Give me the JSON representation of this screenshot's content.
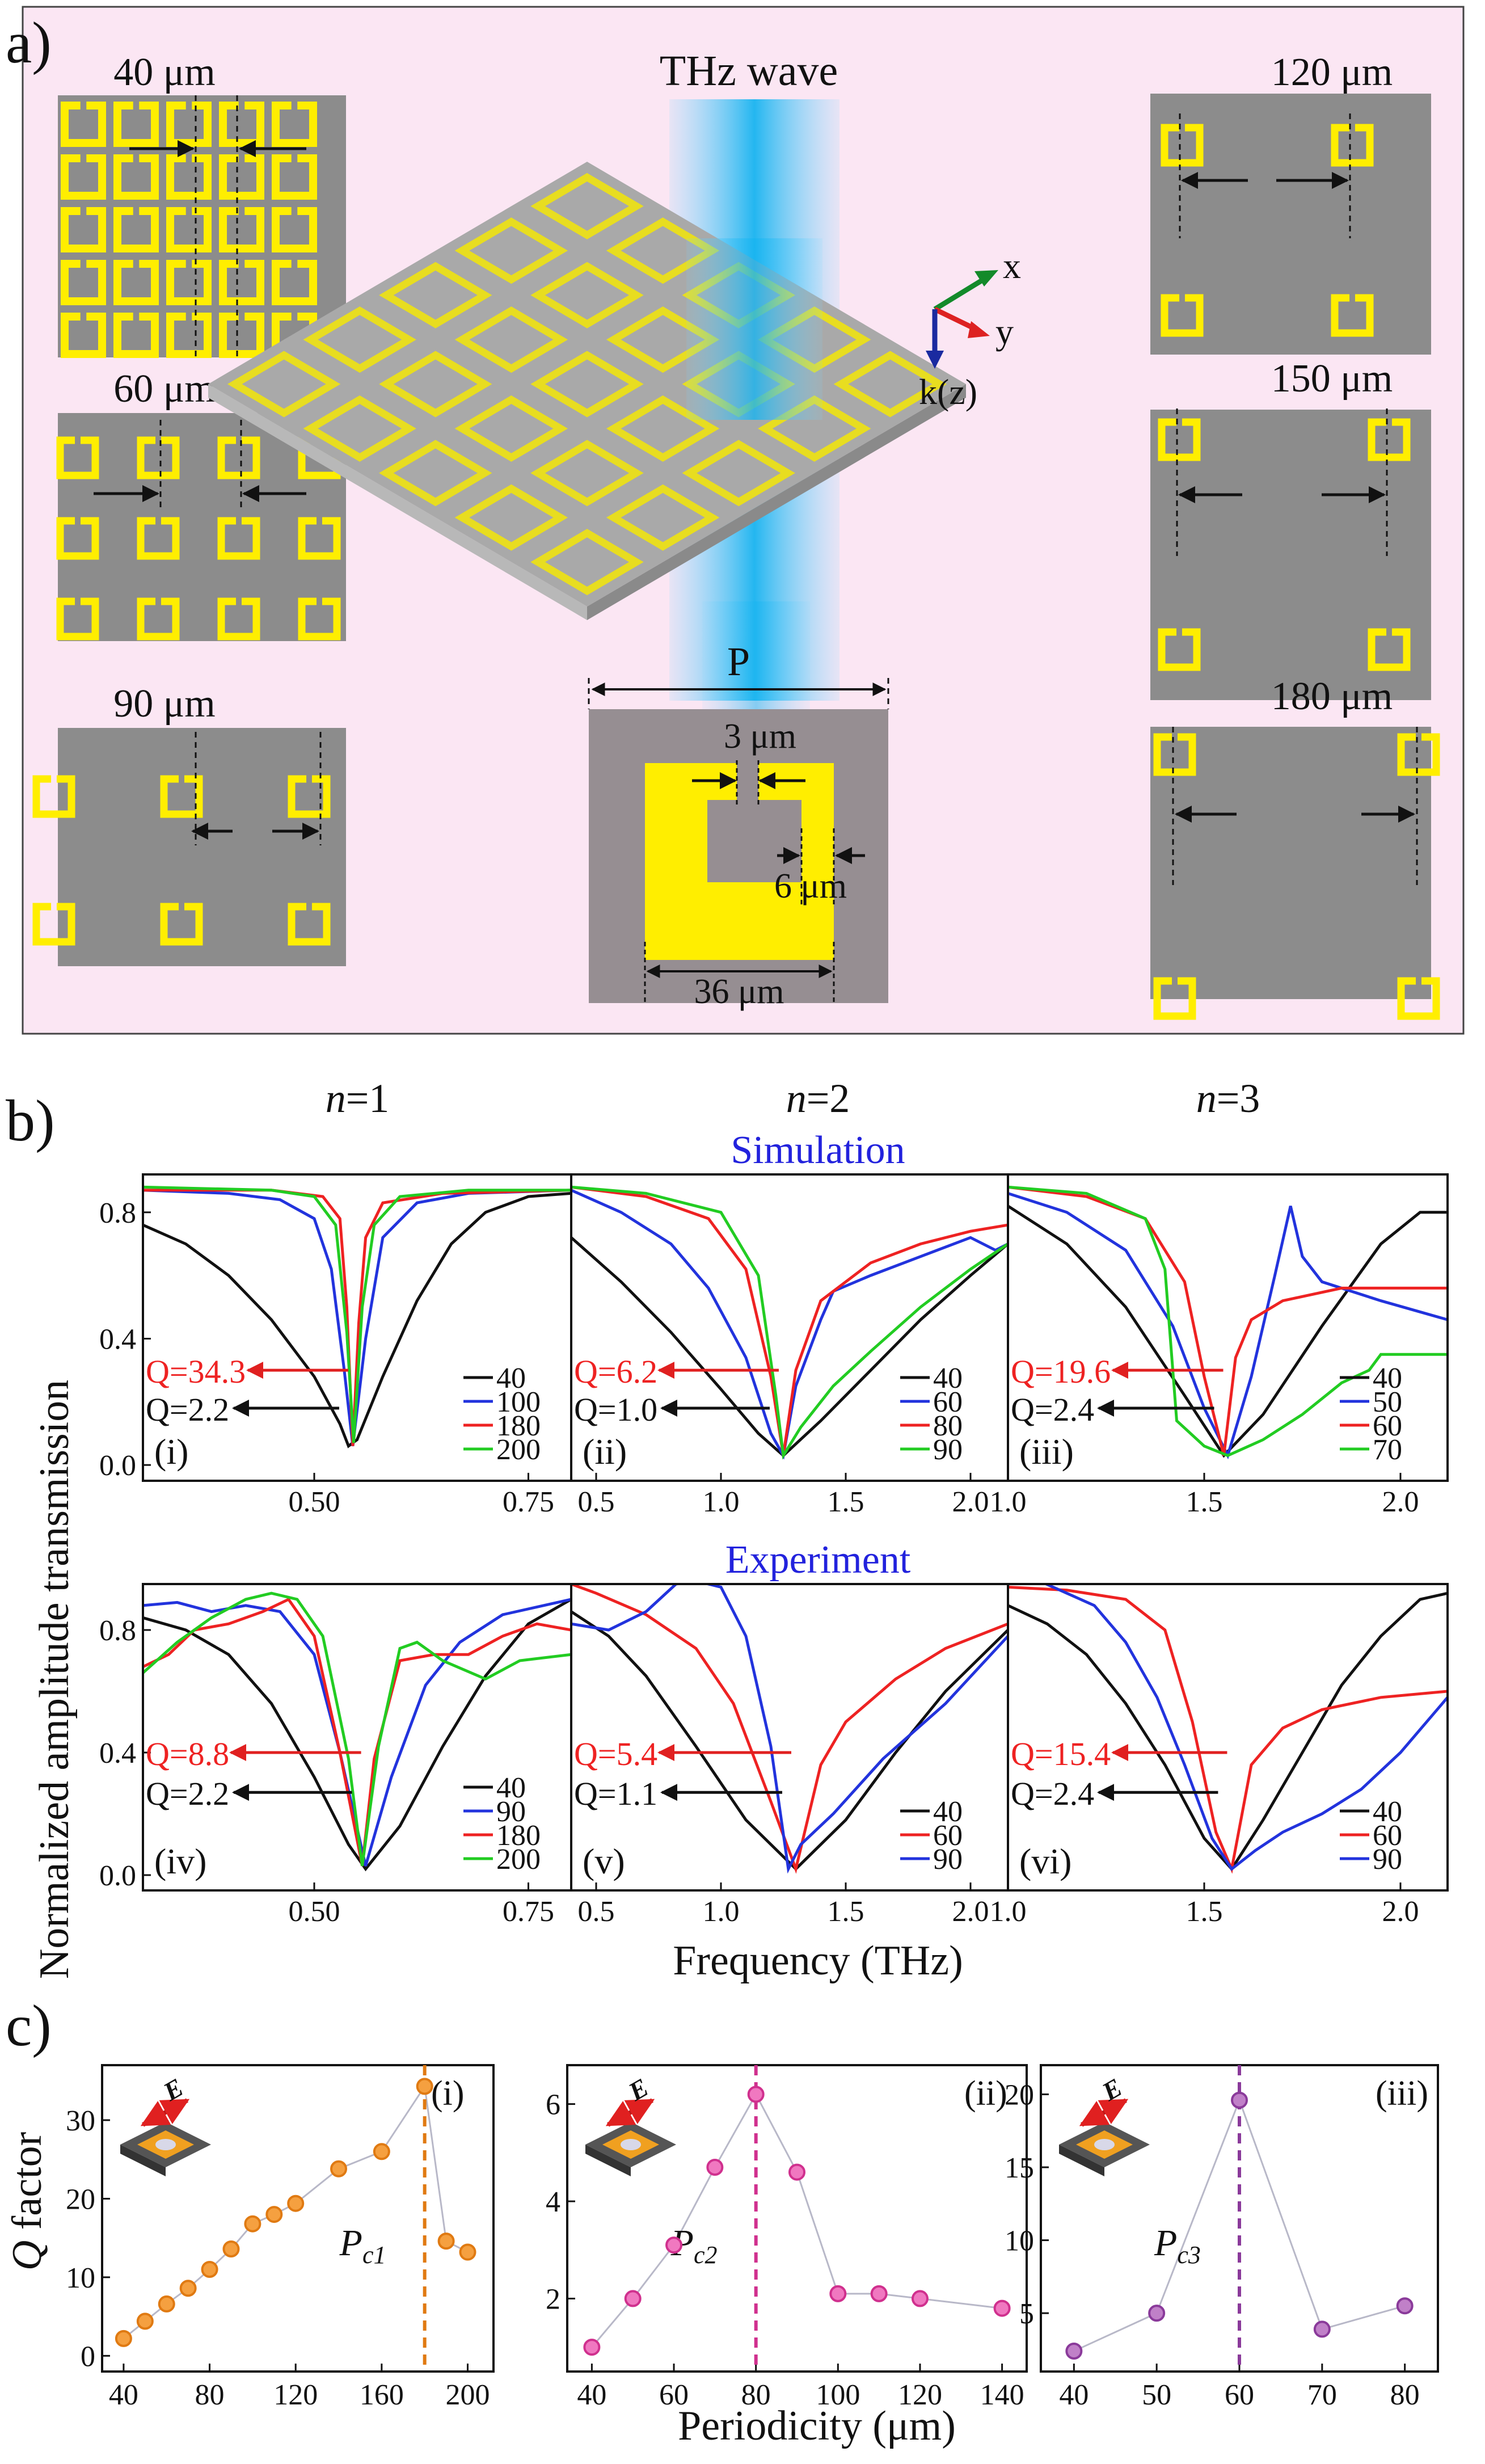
{
  "panel_a": {
    "label": "a)",
    "center_title": "THz wave",
    "axes": {
      "x": "x",
      "y": "y",
      "k": "k(z)"
    },
    "unit_cell": {
      "period_label": "P",
      "gap_label": "3 μm",
      "width_label": "6 μm",
      "size_label": "36 μm"
    },
    "left_arrays": [
      "40 μm",
      "60 μm",
      "90 μm"
    ],
    "right_arrays": [
      "120 μm",
      "150 μm",
      "180 μm"
    ]
  },
  "panel_b": {
    "label": "b)",
    "columns": [
      {
        "n": "n",
        "eq": "=1"
      },
      {
        "n": "n",
        "eq": "=2"
      },
      {
        "n": "n",
        "eq": "=3"
      }
    ],
    "sim_title": "Simulation",
    "exp_title": "Experiment",
    "ylabel": "Normalized amplitude transmission",
    "xlabel": "Frequency (THz)"
  },
  "panel_c": {
    "label": "c)",
    "ylabel_italic": "Q",
    "ylabel_rest": " factor",
    "xlabel": "Periodicity (μm)"
  },
  "chart_data": [
    {
      "id": "b-i",
      "type": "line",
      "row": "Simulation",
      "roman": "(i)",
      "xlim": [
        0.3,
        0.8
      ],
      "ylim": [
        -0.05,
        0.92
      ],
      "xticks": [
        {
          "v": 0.5,
          "t": "0.50"
        },
        {
          "v": 0.75,
          "t": "0.75"
        }
      ],
      "yticks": [
        {
          "v": 0.0,
          "t": "0.0"
        },
        {
          "v": 0.4,
          "t": "0.4"
        },
        {
          "v": 0.8,
          "t": "0.8"
        }
      ],
      "q_red": "Q=34.3",
      "q_black": "Q=2.2",
      "q_red_y": 0.3,
      "q_black_y": 0.18,
      "series": [
        {
          "name": "40",
          "color": "#111111",
          "x": [
            0.3,
            0.35,
            0.4,
            0.45,
            0.5,
            0.53,
            0.54,
            0.55,
            0.58,
            0.62,
            0.66,
            0.7,
            0.75,
            0.8
          ],
          "y": [
            0.76,
            0.7,
            0.6,
            0.46,
            0.28,
            0.13,
            0.06,
            0.08,
            0.28,
            0.52,
            0.7,
            0.8,
            0.85,
            0.86
          ]
        },
        {
          "name": "100",
          "color": "#2233dd",
          "x": [
            0.3,
            0.4,
            0.46,
            0.5,
            0.52,
            0.535,
            0.545,
            0.56,
            0.58,
            0.62,
            0.68,
            0.8
          ],
          "y": [
            0.87,
            0.86,
            0.84,
            0.78,
            0.62,
            0.3,
            0.06,
            0.4,
            0.72,
            0.83,
            0.86,
            0.87
          ]
        },
        {
          "name": "180",
          "color": "#ee2222",
          "x": [
            0.3,
            0.45,
            0.51,
            0.53,
            0.538,
            0.545,
            0.552,
            0.56,
            0.58,
            0.65,
            0.8
          ],
          "y": [
            0.87,
            0.87,
            0.85,
            0.78,
            0.5,
            0.06,
            0.45,
            0.72,
            0.83,
            0.86,
            0.87
          ]
        },
        {
          "name": "200",
          "color": "#22cc22",
          "x": [
            0.3,
            0.45,
            0.5,
            0.525,
            0.538,
            0.546,
            0.556,
            0.57,
            0.6,
            0.68,
            0.8
          ],
          "y": [
            0.88,
            0.87,
            0.85,
            0.76,
            0.42,
            0.07,
            0.5,
            0.76,
            0.85,
            0.87,
            0.87
          ]
        }
      ]
    },
    {
      "id": "b-ii",
      "type": "line",
      "row": "Simulation",
      "roman": "(ii)",
      "xlim": [
        0.4,
        2.15
      ],
      "ylim": [
        -0.05,
        0.92
      ],
      "xticks": [
        {
          "v": 0.5,
          "t": "0.5"
        },
        {
          "v": 1.0,
          "t": "1.0"
        },
        {
          "v": 1.5,
          "t": "1.5"
        },
        {
          "v": 2.0,
          "t": "2.0"
        }
      ],
      "yticks": [],
      "q_red": "Q=6.2",
      "q_black": "Q=1.0",
      "q_red_y": 0.3,
      "q_black_y": 0.18,
      "series": [
        {
          "name": "40",
          "color": "#111111",
          "x": [
            0.4,
            0.6,
            0.8,
            1.0,
            1.15,
            1.25,
            1.4,
            1.6,
            1.8,
            2.0,
            2.15
          ],
          "y": [
            0.72,
            0.58,
            0.42,
            0.24,
            0.1,
            0.03,
            0.14,
            0.3,
            0.46,
            0.6,
            0.7
          ]
        },
        {
          "name": "60",
          "color": "#2233dd",
          "x": [
            0.4,
            0.6,
            0.8,
            0.95,
            1.1,
            1.2,
            1.25,
            1.3,
            1.4,
            1.45,
            1.6,
            1.8,
            2.0,
            2.1,
            2.15
          ],
          "y": [
            0.87,
            0.8,
            0.7,
            0.56,
            0.34,
            0.1,
            0.03,
            0.25,
            0.46,
            0.55,
            0.6,
            0.66,
            0.72,
            0.68,
            0.7
          ]
        },
        {
          "name": "80",
          "color": "#ee2222",
          "x": [
            0.4,
            0.7,
            0.95,
            1.1,
            1.2,
            1.25,
            1.3,
            1.4,
            1.6,
            1.8,
            2.0,
            2.15
          ],
          "y": [
            0.88,
            0.85,
            0.78,
            0.62,
            0.28,
            0.03,
            0.3,
            0.52,
            0.64,
            0.7,
            0.74,
            0.76
          ]
        },
        {
          "name": "90",
          "color": "#22cc22",
          "x": [
            0.4,
            0.7,
            1.0,
            1.15,
            1.22,
            1.25,
            1.32,
            1.45,
            1.6,
            1.8,
            2.0,
            2.15
          ],
          "y": [
            0.88,
            0.86,
            0.8,
            0.6,
            0.22,
            0.03,
            0.12,
            0.25,
            0.36,
            0.5,
            0.62,
            0.7
          ]
        }
      ]
    },
    {
      "id": "b-iii",
      "type": "line",
      "row": "Simulation",
      "roman": "(iii)",
      "xlim": [
        1.0,
        2.12
      ],
      "ylim": [
        -0.05,
        0.92
      ],
      "xticks": [
        {
          "v": 1.0,
          "t": "1.0"
        },
        {
          "v": 1.5,
          "t": "1.5"
        },
        {
          "v": 2.0,
          "t": "2.0"
        }
      ],
      "yticks": [],
      "q_red": "Q=19.6",
      "q_black": "Q=2.4",
      "q_red_y": 0.3,
      "q_black_y": 0.18,
      "series": [
        {
          "name": "40",
          "color": "#111111",
          "x": [
            1.0,
            1.15,
            1.3,
            1.45,
            1.55,
            1.65,
            1.8,
            1.95,
            2.05,
            2.12
          ],
          "y": [
            0.82,
            0.7,
            0.5,
            0.22,
            0.03,
            0.16,
            0.44,
            0.7,
            0.8,
            0.8
          ]
        },
        {
          "name": "50",
          "color": "#2233dd",
          "x": [
            1.0,
            1.15,
            1.3,
            1.42,
            1.5,
            1.56,
            1.62,
            1.68,
            1.72,
            1.75,
            1.8,
            1.95,
            2.12
          ],
          "y": [
            0.86,
            0.8,
            0.68,
            0.44,
            0.18,
            0.03,
            0.28,
            0.6,
            0.82,
            0.66,
            0.58,
            0.52,
            0.46
          ]
        },
        {
          "name": "60",
          "color": "#ee2222",
          "x": [
            1.0,
            1.2,
            1.35,
            1.45,
            1.5,
            1.55,
            1.58,
            1.62,
            1.7,
            1.85,
            2.12
          ],
          "y": [
            0.88,
            0.85,
            0.78,
            0.58,
            0.28,
            0.03,
            0.34,
            0.46,
            0.52,
            0.56,
            0.56
          ]
        },
        {
          "name": "70",
          "color": "#22cc22",
          "x": [
            1.0,
            1.2,
            1.35,
            1.4,
            1.43,
            1.5,
            1.56,
            1.65,
            1.75,
            1.85,
            1.92,
            1.95,
            2.12
          ],
          "y": [
            0.88,
            0.86,
            0.78,
            0.62,
            0.14,
            0.06,
            0.03,
            0.08,
            0.16,
            0.26,
            0.3,
            0.35,
            0.35
          ]
        }
      ]
    },
    {
      "id": "b-iv",
      "type": "line",
      "row": "Experiment",
      "roman": "(iv)",
      "xlim": [
        0.3,
        0.8
      ],
      "ylim": [
        -0.05,
        0.95
      ],
      "xticks": [
        {
          "v": 0.5,
          "t": "0.50"
        },
        {
          "v": 0.75,
          "t": "0.75"
        }
      ],
      "yticks": [
        {
          "v": 0.0,
          "t": "0.0"
        },
        {
          "v": 0.4,
          "t": "0.4"
        },
        {
          "v": 0.8,
          "t": "0.8"
        }
      ],
      "q_red": "Q=8.8",
      "q_black": "Q=2.2",
      "q_red_y": 0.4,
      "q_black_y": 0.27,
      "series": [
        {
          "name": "40",
          "color": "#111111",
          "x": [
            0.3,
            0.35,
            0.4,
            0.45,
            0.5,
            0.54,
            0.56,
            0.6,
            0.65,
            0.7,
            0.75,
            0.8
          ],
          "y": [
            0.84,
            0.8,
            0.72,
            0.56,
            0.32,
            0.1,
            0.02,
            0.16,
            0.42,
            0.65,
            0.82,
            0.9
          ]
        },
        {
          "name": "90",
          "color": "#2233dd",
          "x": [
            0.3,
            0.34,
            0.38,
            0.42,
            0.46,
            0.5,
            0.53,
            0.56,
            0.59,
            0.63,
            0.67,
            0.72,
            0.8
          ],
          "y": [
            0.88,
            0.89,
            0.86,
            0.88,
            0.86,
            0.72,
            0.4,
            0.03,
            0.32,
            0.62,
            0.76,
            0.85,
            0.9
          ]
        },
        {
          "name": "180",
          "color": "#ee2222",
          "x": [
            0.3,
            0.33,
            0.36,
            0.4,
            0.44,
            0.47,
            0.5,
            0.53,
            0.556,
            0.57,
            0.6,
            0.64,
            0.68,
            0.72,
            0.76,
            0.8
          ],
          "y": [
            0.68,
            0.72,
            0.8,
            0.82,
            0.86,
            0.9,
            0.78,
            0.4,
            0.03,
            0.38,
            0.7,
            0.72,
            0.72,
            0.78,
            0.82,
            0.8
          ]
        },
        {
          "name": "200",
          "color": "#22cc22",
          "x": [
            0.3,
            0.34,
            0.38,
            0.42,
            0.45,
            0.48,
            0.51,
            0.54,
            0.556,
            0.575,
            0.6,
            0.62,
            0.65,
            0.7,
            0.74,
            0.8
          ],
          "y": [
            0.66,
            0.76,
            0.84,
            0.9,
            0.92,
            0.9,
            0.78,
            0.38,
            0.03,
            0.42,
            0.74,
            0.76,
            0.7,
            0.64,
            0.7,
            0.72
          ]
        }
      ]
    },
    {
      "id": "b-v",
      "type": "line",
      "row": "Experiment",
      "roman": "(v)",
      "xlim": [
        0.4,
        2.15
      ],
      "ylim": [
        -0.05,
        0.95
      ],
      "xticks": [
        {
          "v": 0.5,
          "t": "0.5"
        },
        {
          "v": 1.0,
          "t": "1.0"
        },
        {
          "v": 1.5,
          "t": "1.5"
        },
        {
          "v": 2.0,
          "t": "2.0"
        }
      ],
      "yticks": [],
      "q_red": "Q=5.4",
      "q_black": "Q=1.1",
      "q_red_y": 0.4,
      "q_black_y": 0.27,
      "series": [
        {
          "name": "40",
          "color": "#111111",
          "x": [
            0.4,
            0.55,
            0.7,
            0.9,
            1.1,
            1.3,
            1.5,
            1.7,
            1.9,
            2.15
          ],
          "y": [
            0.86,
            0.78,
            0.65,
            0.42,
            0.18,
            0.02,
            0.18,
            0.4,
            0.6,
            0.8
          ]
        },
        {
          "name": "60",
          "color": "#ee2222",
          "x": [
            0.4,
            0.5,
            0.7,
            0.9,
            1.05,
            1.2,
            1.3,
            1.4,
            1.5,
            1.7,
            1.9,
            2.15
          ],
          "y": [
            0.95,
            0.92,
            0.85,
            0.74,
            0.56,
            0.24,
            0.02,
            0.36,
            0.5,
            0.64,
            0.74,
            0.82
          ]
        },
        {
          "name": "90",
          "color": "#2233dd",
          "x": [
            0.4,
            0.55,
            0.7,
            0.82,
            0.9,
            1.0,
            1.1,
            1.2,
            1.27,
            1.32,
            1.45,
            1.65,
            1.9,
            2.15
          ],
          "y": [
            0.82,
            0.8,
            0.86,
            0.95,
            0.96,
            0.94,
            0.78,
            0.42,
            0.02,
            0.1,
            0.2,
            0.38,
            0.56,
            0.78
          ]
        }
      ]
    },
    {
      "id": "b-vi",
      "type": "line",
      "row": "Experiment",
      "roman": "(vi)",
      "xlim": [
        1.0,
        2.12
      ],
      "ylim": [
        -0.05,
        0.95
      ],
      "xticks": [
        {
          "v": 1.0,
          "t": "1.0"
        },
        {
          "v": 1.5,
          "t": "1.5"
        },
        {
          "v": 2.0,
          "t": "2.0"
        }
      ],
      "yticks": [],
      "q_red": "Q=15.4",
      "q_black": "Q=2.4",
      "q_red_y": 0.4,
      "q_black_y": 0.27,
      "series": [
        {
          "name": "40",
          "color": "#111111",
          "x": [
            1.0,
            1.1,
            1.2,
            1.3,
            1.4,
            1.5,
            1.57,
            1.65,
            1.75,
            1.85,
            1.95,
            2.05,
            2.12
          ],
          "y": [
            0.88,
            0.82,
            0.72,
            0.56,
            0.36,
            0.12,
            0.02,
            0.18,
            0.4,
            0.62,
            0.78,
            0.9,
            0.92
          ]
        },
        {
          "name": "60",
          "color": "#ee2222",
          "x": [
            1.0,
            1.15,
            1.3,
            1.4,
            1.47,
            1.53,
            1.57,
            1.62,
            1.7,
            1.8,
            1.95,
            2.12
          ],
          "y": [
            0.94,
            0.93,
            0.9,
            0.8,
            0.5,
            0.14,
            0.02,
            0.36,
            0.48,
            0.54,
            0.58,
            0.6
          ]
        },
        {
          "name": "90",
          "color": "#2233dd",
          "x": [
            1.0,
            1.08,
            1.15,
            1.22,
            1.3,
            1.38,
            1.45,
            1.52,
            1.57,
            1.63,
            1.7,
            1.8,
            1.9,
            2.0,
            2.12
          ],
          "y": [
            0.95,
            0.96,
            0.92,
            0.88,
            0.76,
            0.58,
            0.36,
            0.12,
            0.02,
            0.08,
            0.14,
            0.2,
            0.28,
            0.4,
            0.58
          ]
        }
      ]
    },
    {
      "id": "c-i",
      "type": "scatter",
      "roman": "(i)",
      "color": "#f5a040",
      "edge": "#e07a12",
      "xlim": [
        30,
        212
      ],
      "ylim": [
        -2,
        37
      ],
      "xticks": [
        40,
        80,
        120,
        160,
        200
      ],
      "yticks": [
        0,
        10,
        20,
        30
      ],
      "critical": {
        "x": 180,
        "label": "P",
        "sub": "c1"
      },
      "x": [
        40,
        50,
        60,
        70,
        80,
        90,
        100,
        110,
        120,
        140,
        160,
        180,
        190,
        200
      ],
      "y": [
        2.2,
        4.4,
        6.6,
        8.6,
        11.0,
        13.6,
        16.8,
        18.0,
        19.4,
        23.8,
        26.0,
        34.3,
        14.6,
        13.2
      ]
    },
    {
      "id": "c-ii",
      "type": "scatter",
      "roman": "(ii)",
      "color": "#f078c0",
      "edge": "#d0308e",
      "xlim": [
        34,
        146
      ],
      "ylim": [
        0.5,
        6.8
      ],
      "xticks": [
        40,
        60,
        80,
        100,
        120,
        140
      ],
      "yticks": [
        2,
        4,
        6
      ],
      "critical": {
        "x": 80,
        "label": "P",
        "sub": "c2"
      },
      "x": [
        40,
        50,
        60,
        70,
        80,
        90,
        100,
        110,
        120,
        140
      ],
      "y": [
        1.0,
        2.0,
        3.1,
        4.7,
        6.2,
        4.6,
        2.1,
        2.1,
        2.0,
        1.8
      ]
    },
    {
      "id": "c-iii",
      "type": "scatter",
      "roman": "(iii)",
      "color": "#c080c8",
      "edge": "#8a3a9a",
      "xlim": [
        36,
        84
      ],
      "ylim": [
        1,
        22
      ],
      "xticks": [
        40,
        50,
        60,
        70,
        80
      ],
      "yticks": [
        5,
        10,
        15,
        20
      ],
      "critical": {
        "x": 60,
        "label": "P",
        "sub": "c3"
      },
      "x": [
        40,
        50,
        60,
        70,
        80
      ],
      "y": [
        2.4,
        5.0,
        19.6,
        3.9,
        5.5
      ]
    }
  ]
}
